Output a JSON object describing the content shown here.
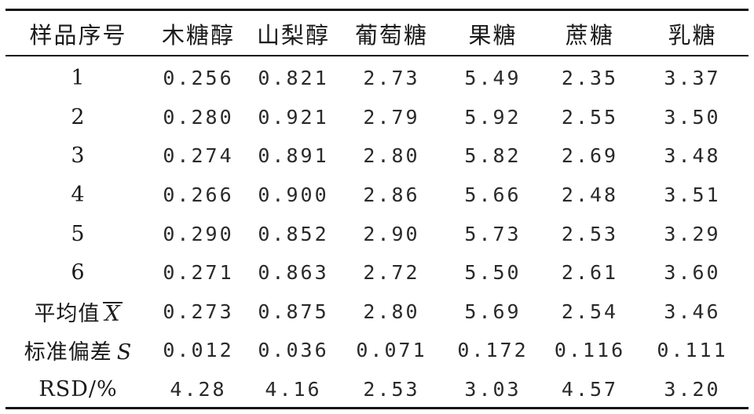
{
  "table": {
    "columns": [
      "样品序号",
      "木糖醇",
      "山梨醇",
      "葡萄糖",
      "果糖",
      "蔗糖",
      "乳糖"
    ],
    "rows": [
      {
        "label": "1",
        "values": [
          "0.256",
          "0.821",
          "2.73",
          "5.49",
          "2.35",
          "3.37"
        ]
      },
      {
        "label": "2",
        "values": [
          "0.280",
          "0.921",
          "2.79",
          "5.92",
          "2.55",
          "3.50"
        ]
      },
      {
        "label": "3",
        "values": [
          "0.274",
          "0.891",
          "2.80",
          "5.82",
          "2.69",
          "3.48"
        ]
      },
      {
        "label": "4",
        "values": [
          "0.266",
          "0.900",
          "2.86",
          "5.66",
          "2.48",
          "3.51"
        ]
      },
      {
        "label": "5",
        "values": [
          "0.290",
          "0.852",
          "2.90",
          "5.73",
          "2.53",
          "3.29"
        ]
      },
      {
        "label": "6",
        "values": [
          "0.271",
          "0.863",
          "2.72",
          "5.50",
          "2.61",
          "3.60"
        ]
      }
    ],
    "mean": {
      "label": "平均值",
      "symbol": "X",
      "values": [
        "0.273",
        "0.875",
        "2.80",
        "5.69",
        "2.54",
        "3.46"
      ]
    },
    "std": {
      "label": "标准偏差",
      "symbol": "S",
      "values": [
        "0.012",
        "0.036",
        "0.071",
        "0.172",
        "0.116",
        "0.111"
      ]
    },
    "rsd": {
      "label": "RSD/%",
      "values": [
        "4.28",
        "4.16",
        "2.53",
        "3.03",
        "4.57",
        "3.20"
      ]
    }
  }
}
